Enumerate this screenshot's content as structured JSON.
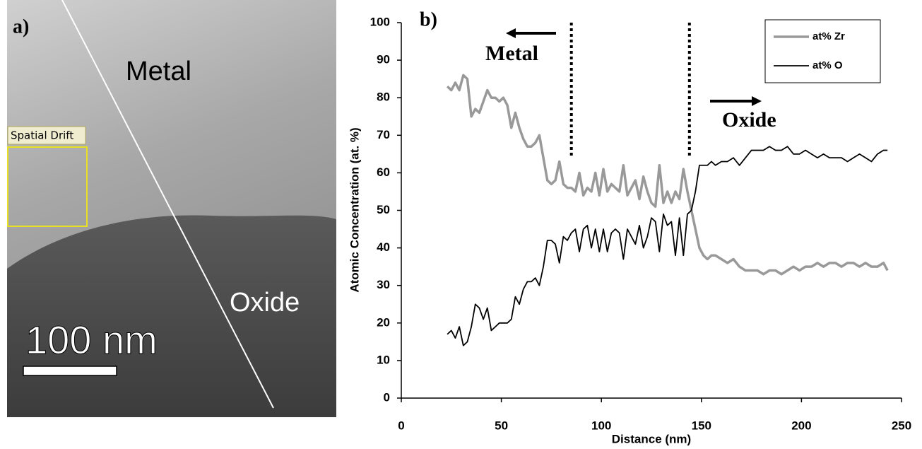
{
  "image_panel": {
    "label": "a)",
    "region_top": "Metal",
    "region_bottom": "Oxide",
    "overlay": "Spatial Drift",
    "scale_bar": "100 nm"
  },
  "chart_data": {
    "type": "line",
    "panel_label": "b)",
    "x_label": "Distance (nm)",
    "y_label": "Atomic Concentration (at. %)",
    "annotations": [
      "Metal",
      "Oxide"
    ],
    "vlines": [
      85,
      144
    ],
    "x": [
      23,
      25,
      27,
      29,
      31,
      33,
      35,
      37,
      39,
      41,
      43,
      45,
      47,
      49,
      51,
      53,
      55,
      57,
      59,
      61,
      63,
      65,
      67,
      69,
      71,
      73,
      75,
      77,
      79,
      81,
      83,
      85,
      87,
      89,
      91,
      93,
      95,
      97,
      99,
      101,
      103,
      105,
      107,
      109,
      111,
      113,
      115,
      117,
      119,
      121,
      123,
      125,
      127,
      129,
      131,
      133,
      135,
      137,
      139,
      141,
      143,
      145,
      147,
      149,
      151,
      153,
      155,
      157,
      160,
      163,
      166,
      169,
      172,
      175,
      178,
      181,
      184,
      187,
      190,
      193,
      196,
      199,
      202,
      205,
      208,
      211,
      214,
      217,
      220,
      223,
      226,
      229,
      232,
      235,
      238,
      241,
      243
    ],
    "series": [
      {
        "name": "at% Zr",
        "color": "#999999",
        "width": 3.5,
        "values": [
          83,
          82,
          84,
          82,
          86,
          85,
          75,
          77,
          76,
          79,
          82,
          80,
          80,
          79,
          80,
          78,
          72,
          76,
          72,
          69,
          67,
          67,
          68,
          70,
          64,
          58,
          57,
          58,
          63,
          57,
          56,
          56,
          55,
          60,
          54,
          56,
          55,
          60,
          54,
          61,
          55,
          57,
          56,
          55,
          62,
          54,
          56,
          58,
          53,
          59,
          55,
          52,
          51,
          62,
          52,
          55,
          52,
          55,
          53,
          61,
          55,
          50,
          45,
          40,
          38,
          37,
          38,
          38,
          37,
          36,
          37,
          35,
          34,
          34,
          34,
          33,
          34,
          34,
          33,
          34,
          35,
          34,
          35,
          35,
          36,
          35,
          36,
          36,
          35,
          36,
          36,
          35,
          36,
          35,
          35,
          36,
          34
        ]
      },
      {
        "name": "at% O",
        "color": "#000000",
        "width": 1.8,
        "values": [
          17,
          18,
          16,
          19,
          14,
          15,
          19,
          25,
          24,
          21,
          24,
          18,
          19,
          20,
          20,
          20,
          21,
          27,
          25,
          29,
          31,
          31,
          32,
          30,
          35,
          42,
          42,
          41,
          36,
          43,
          42,
          44,
          45,
          39,
          45,
          46,
          40,
          45,
          39,
          45,
          39,
          44,
          45,
          44,
          37,
          45,
          43,
          41,
          46,
          40,
          43,
          48,
          47,
          39,
          49,
          46,
          47,
          38,
          48,
          38,
          49,
          50,
          55,
          62,
          62,
          62,
          63,
          62,
          63,
          63,
          64,
          62,
          64,
          66,
          66,
          66,
          67,
          66,
          66,
          67,
          65,
          65,
          66,
          65,
          64,
          65,
          64,
          64,
          64,
          63,
          64,
          65,
          64,
          63,
          65,
          66,
          66
        ]
      }
    ],
    "xlim": [
      0,
      250
    ],
    "xticks": [
      0,
      50,
      100,
      150,
      200,
      250
    ],
    "ylim": [
      0,
      100
    ],
    "yticks": [
      0,
      10,
      20,
      30,
      40,
      50,
      60,
      70,
      80,
      90,
      100
    ],
    "legend": "top-right"
  }
}
